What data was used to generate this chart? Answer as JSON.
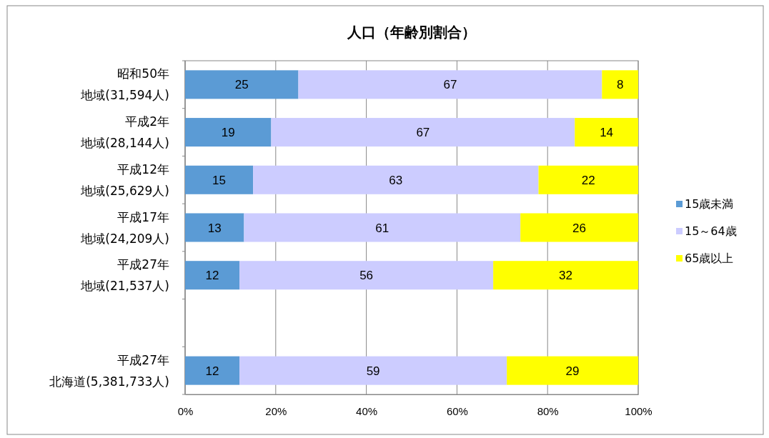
{
  "chart_data": {
    "type": "bar",
    "orientation": "horizontal",
    "stacked": true,
    "title": "人口（年齢別割合）",
    "categories": [
      "昭和50年地域(31,594人)",
      "平成2年地域(28,144人)",
      "平成12年地域(25,629人)",
      "平成17年地域(24,209人)",
      "平成27年地域(21,537人)",
      null,
      "平成27年北海道(5,381,733人)"
    ],
    "series": [
      {
        "name": "15歳未満",
        "color": "#5b9bd5",
        "values": [
          25,
          19,
          15,
          13,
          12,
          null,
          12
        ]
      },
      {
        "name": "15～64歳",
        "color": "#ccccff",
        "values": [
          67,
          67,
          63,
          61,
          56,
          null,
          59
        ]
      },
      {
        "name": "65歳以上",
        "color": "#ffff00",
        "values": [
          8,
          14,
          22,
          26,
          32,
          null,
          29
        ]
      }
    ],
    "xlim": [
      0,
      100
    ],
    "xticks": [
      {
        "value": 0,
        "label": "0%"
      },
      {
        "value": 20,
        "label": "20%"
      },
      {
        "value": 40,
        "label": "40%"
      },
      {
        "value": 60,
        "label": "60%"
      },
      {
        "value": 80,
        "label": "80%"
      },
      {
        "value": 100,
        "label": "100%"
      }
    ],
    "grid": "x",
    "legend": "right",
    "data_labels": true
  }
}
